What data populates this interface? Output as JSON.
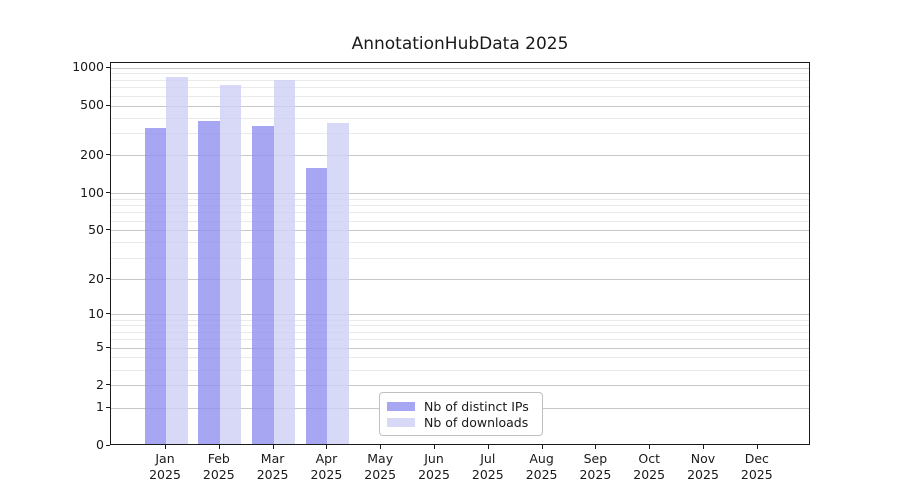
{
  "chart_data": {
    "type": "bar",
    "title": "AnnotationHubData 2025",
    "y_scale": "log1p",
    "ylim": [
      0,
      1100
    ],
    "yticks": [
      0,
      1,
      2,
      5,
      10,
      20,
      50,
      100,
      200,
      500,
      1000
    ],
    "grid": true,
    "legend_position": "bottom-center-inside",
    "categories": [
      "Jan 2025",
      "Feb 2025",
      "Mar 2025",
      "Apr 2025",
      "May 2025",
      "Jun 2025",
      "Jul 2025",
      "Aug 2025",
      "Sep 2025",
      "Oct 2025",
      "Nov 2025",
      "Dec 2025"
    ],
    "series": [
      {
        "name": "Nb of distinct IPs",
        "key": "distinct-ips",
        "color": "rgba(144,144,239,0.8)",
        "swatch_color": "#a6a6f2",
        "values": [
          325,
          365,
          335,
          155,
          null,
          null,
          null,
          null,
          null,
          null,
          null,
          null
        ]
      },
      {
        "name": "Nb of downloads",
        "key": "downloads",
        "color": "rgba(206,206,245,0.8)",
        "swatch_color": "#d8d8f7",
        "values": [
          825,
          710,
          775,
          355,
          null,
          null,
          null,
          null,
          null,
          null,
          null,
          null
        ]
      }
    ]
  },
  "colors": {
    "grid_major": "#c8c8c8",
    "grid_minor": "#eaeaea",
    "axis": "#1a1a1a",
    "background": "#ffffff"
  }
}
